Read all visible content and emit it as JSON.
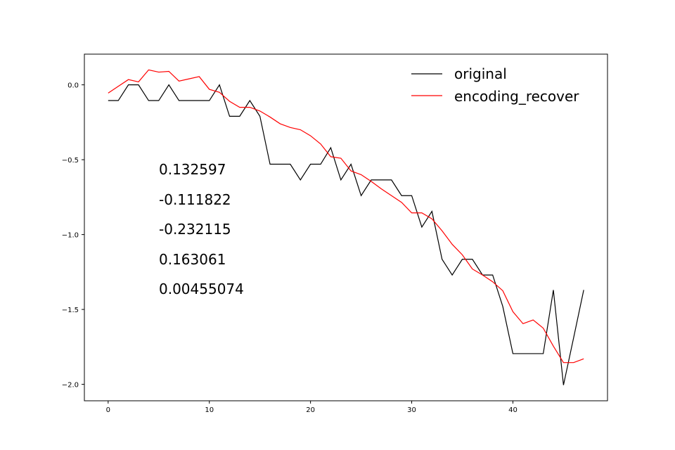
{
  "chart_data": {
    "type": "line",
    "xlim": [
      -2.35,
      49.35
    ],
    "ylim": [
      -2.11,
      0.205
    ],
    "x_ticks": [
      0,
      10,
      20,
      30,
      40
    ],
    "y_ticks": [
      0.0,
      -0.5,
      -1.0,
      -1.5,
      -2.0
    ],
    "x_tick_labels": [
      "0",
      "10",
      "20",
      "30",
      "40"
    ],
    "y_tick_labels": [
      "0.0",
      "−0.5",
      "−1.0",
      "−1.5",
      "−2.0"
    ],
    "grid": false,
    "legend_placement": "upper-right",
    "series": [
      {
        "name": "original",
        "color": "#000000",
        "x": [
          0,
          1,
          2,
          3,
          4,
          5,
          6,
          7,
          8,
          9,
          10,
          11,
          12,
          13,
          14,
          15,
          16,
          17,
          18,
          19,
          20,
          21,
          22,
          23,
          24,
          25,
          26,
          27,
          28,
          29,
          30,
          31,
          32,
          33,
          34,
          35,
          36,
          37,
          38,
          39,
          40,
          41,
          42,
          43,
          44,
          45,
          46,
          47
        ],
        "values": [
          -0.105,
          -0.105,
          0.0,
          0.0,
          -0.105,
          -0.105,
          0.0,
          -0.105,
          -0.105,
          -0.105,
          -0.105,
          0.0,
          -0.21,
          -0.21,
          -0.105,
          -0.21,
          -0.53,
          -0.53,
          -0.53,
          -0.635,
          -0.53,
          -0.53,
          -0.42,
          -0.635,
          -0.53,
          -0.74,
          -0.635,
          -0.635,
          -0.635,
          -0.74,
          -0.74,
          -0.95,
          -0.845,
          -1.165,
          -1.27,
          -1.165,
          -1.165,
          -1.27,
          -1.27,
          -1.48,
          -1.795,
          -1.795,
          -1.795,
          -1.795,
          -1.37,
          -2.005,
          -1.69,
          -1.37
        ]
      },
      {
        "name": "encoding_recover",
        "color": "#ff0000",
        "x": [
          0,
          1,
          2,
          3,
          4,
          5,
          6,
          7,
          8,
          9,
          10,
          11,
          12,
          13,
          14,
          15,
          16,
          17,
          18,
          19,
          20,
          21,
          22,
          23,
          24,
          25,
          26,
          27,
          28,
          29,
          30,
          31,
          32,
          33,
          34,
          35,
          36,
          37,
          38,
          39,
          40,
          41,
          42,
          43,
          44,
          45,
          46,
          47
        ],
        "values": [
          -0.055,
          -0.01,
          0.035,
          0.02,
          0.1,
          0.085,
          0.09,
          0.025,
          0.04,
          0.055,
          -0.03,
          -0.05,
          -0.11,
          -0.15,
          -0.15,
          -0.175,
          -0.215,
          -0.26,
          -0.285,
          -0.3,
          -0.34,
          -0.395,
          -0.48,
          -0.49,
          -0.575,
          -0.6,
          -0.645,
          -0.695,
          -0.74,
          -0.785,
          -0.855,
          -0.855,
          -0.895,
          -0.975,
          -1.065,
          -1.135,
          -1.23,
          -1.27,
          -1.315,
          -1.375,
          -1.515,
          -1.595,
          -1.57,
          -1.625,
          -1.745,
          -1.855,
          -1.855,
          -1.83
        ]
      }
    ],
    "annotations": [
      "0.132597",
      "-0.111822",
      "-0.232115",
      "0.163061",
      "0.00455074"
    ]
  }
}
